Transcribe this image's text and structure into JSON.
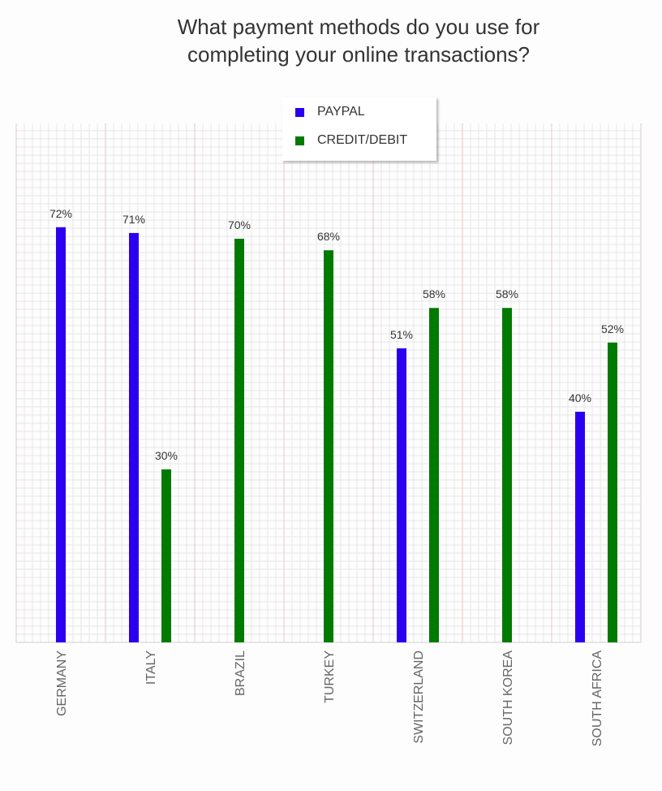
{
  "colors": {
    "paypal": "#2b00f0",
    "credit": "#007a00",
    "grid_minor": "#e6e6e6",
    "grid_major": "#e3c9c9",
    "text": "#333333",
    "tick": "#666666"
  },
  "chart_data": {
    "type": "bar",
    "title": "What payment methods do you use for\ncompleting your online transactions?",
    "xlabel": "",
    "ylabel": "",
    "ylim": [
      0,
      90
    ],
    "grid": true,
    "legend_position": "top-center",
    "categories": [
      "GERMANY",
      "ITALY",
      "BRAZIL",
      "TURKEY",
      "SWITZERLAND",
      "SOUTH KOREA",
      "SOUTH AFRICA"
    ],
    "series": [
      {
        "name": "PAYPAL",
        "color": "#2b00f0",
        "values": [
          72,
          71,
          null,
          null,
          51,
          null,
          40
        ]
      },
      {
        "name": "CREDIT/DEBIT",
        "color": "#007a00",
        "values": [
          null,
          30,
          70,
          68,
          58,
          58,
          52
        ]
      }
    ],
    "value_suffix": "%"
  }
}
